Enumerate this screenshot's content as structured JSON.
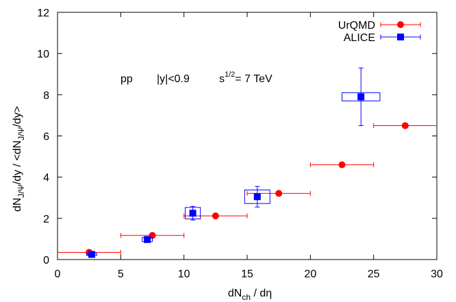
{
  "chart_data": {
    "type": "scatter",
    "xlabel": {
      "main": "dN",
      "sub": "ch",
      "rest": " / dη"
    },
    "ylabel": {
      "p1": "dN",
      "s1": "J/Ψ",
      "p2": "/dy / <dN",
      "s2": "J/Ψ",
      "p3": "/dy>"
    },
    "xlim": [
      0,
      30
    ],
    "ylim": [
      0,
      12
    ],
    "xticks": [
      0,
      5,
      10,
      15,
      20,
      25,
      30
    ],
    "yticks": [
      0,
      2,
      4,
      6,
      8,
      10,
      12
    ],
    "grid": false,
    "legend_position": "top-right",
    "annotation": {
      "pp": "pp",
      "rap": "|y|<0.9",
      "sqrt_main": "s",
      "sqrt_sup": "1/2",
      "energy": "= 7 TeV"
    },
    "series": [
      {
        "name": "UrQMD",
        "color": "#ff0000",
        "marker": "circle",
        "points": [
          {
            "x": 2.5,
            "y": 0.35,
            "xerr": 2.5
          },
          {
            "x": 7.5,
            "y": 1.17,
            "xerr": 2.5
          },
          {
            "x": 12.5,
            "y": 2.12,
            "xerr": 2.5
          },
          {
            "x": 17.5,
            "y": 3.21,
            "xerr": 2.5
          },
          {
            "x": 22.5,
            "y": 4.6,
            "xerr": 2.5
          },
          {
            "x": 27.5,
            "y": 6.5,
            "xerr": 2.5
          }
        ]
      },
      {
        "name": "ALICE",
        "color": "#0000ff",
        "marker": "square",
        "points": [
          {
            "x": 2.7,
            "y": 0.25,
            "yerr": 0.04,
            "sys_dx": 0.4,
            "sys_dy": 0.05
          },
          {
            "x": 7.1,
            "y": 0.97,
            "yerr": 0.1,
            "sys_dx": 0.4,
            "sys_dy": 0.1
          },
          {
            "x": 10.7,
            "y": 2.25,
            "yerr": 0.33,
            "sys_dx": 0.6,
            "sys_dy": 0.28
          },
          {
            "x": 15.8,
            "y": 3.05,
            "yerr": 0.5,
            "sys_dx": 1.0,
            "sys_dy": 0.33
          },
          {
            "x": 24.0,
            "y": 7.9,
            "yerr": 1.4,
            "sys_dx": 1.5,
            "sys_dy": 0.2
          }
        ]
      }
    ]
  }
}
